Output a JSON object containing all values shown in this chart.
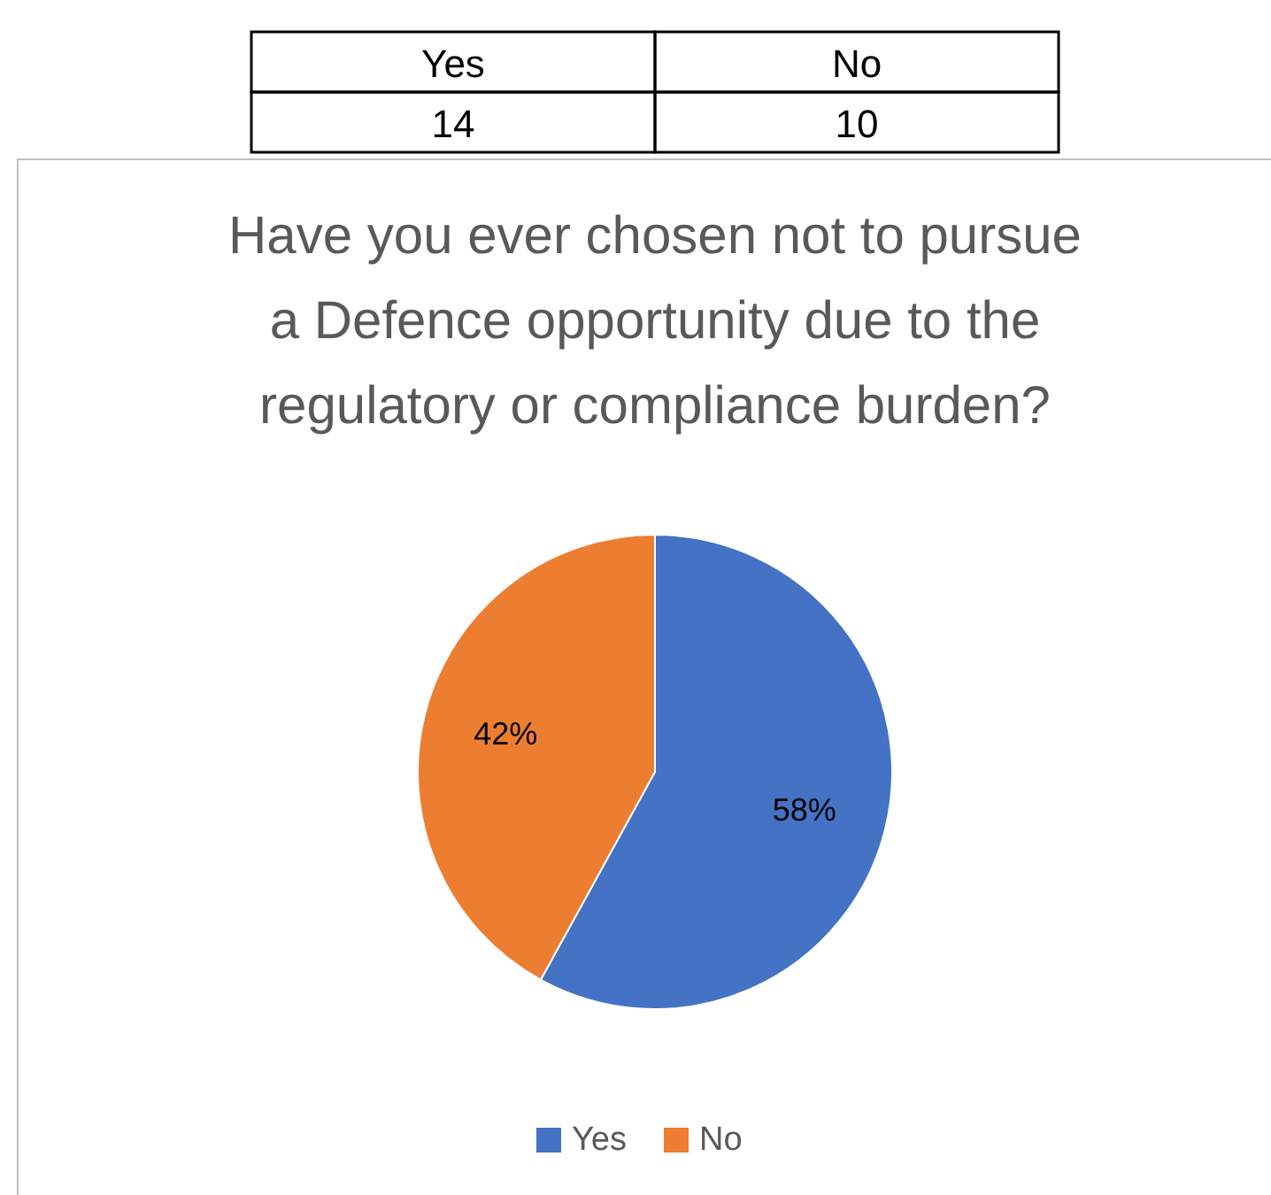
{
  "chart_data": {
    "type": "pie",
    "title": "Have you ever chosen not to pursue a Defence opportunity due to the regulatory or compliance burden?",
    "categories": [
      "Yes",
      "No"
    ],
    "values": [
      58,
      42
    ],
    "annotations": [
      "14",
      "10"
    ],
    "colors": [
      "#4472c4",
      "#ed7d31"
    ],
    "value_labels": [
      "58%",
      "42%"
    ],
    "legend": "bottom"
  }
}
